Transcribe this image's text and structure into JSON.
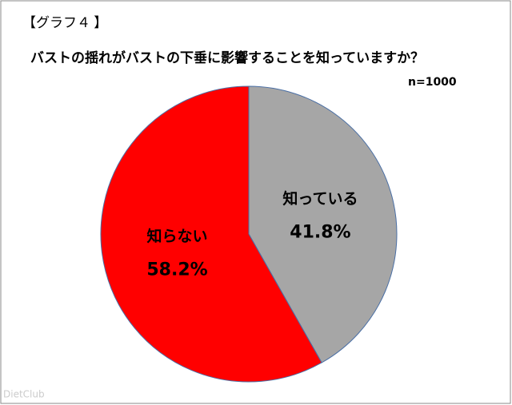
{
  "chart_data": {
    "type": "pie",
    "title": "【グラフ４ 】",
    "subtitle": "バストの揺れがバストの下垂に影響することを知っていますか？",
    "annotation": "n=1000",
    "watermark": "DietClub",
    "categories": [
      "知っている",
      "知らない"
    ],
    "values": [
      41.8,
      58.2
    ],
    "value_labels": [
      "41.8%",
      "58.2%"
    ],
    "colors": [
      "#a6a6a6",
      "#ff0000"
    ]
  }
}
